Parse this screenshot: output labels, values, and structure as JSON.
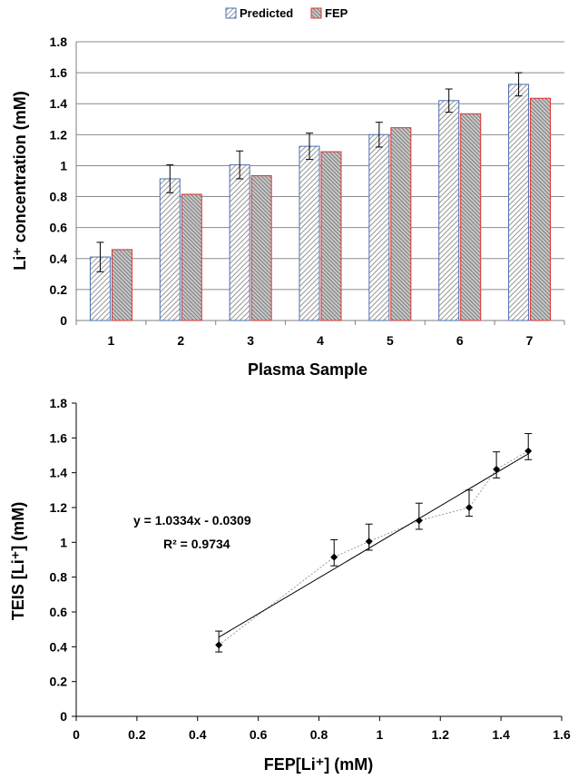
{
  "chart_data": [
    {
      "type": "bar",
      "categories": [
        "1",
        "2",
        "3",
        "4",
        "5",
        "6",
        "7"
      ],
      "series": [
        {
          "name": "Predicted",
          "values": [
            0.41,
            0.915,
            1.005,
            1.125,
            1.2,
            1.42,
            1.525
          ],
          "error": [
            0.095,
            0.09,
            0.09,
            0.085,
            0.08,
            0.075,
            0.075
          ]
        },
        {
          "name": "FEP",
          "values": [
            0.458,
            0.815,
            0.935,
            1.09,
            1.245,
            1.335,
            1.435
          ]
        }
      ],
      "xlabel": "Plasma Sample",
      "ylabel": "Li⁺ concentration (mM)",
      "ylim": [
        0,
        1.8
      ],
      "yticks": [
        "0",
        "0.2",
        "0.4",
        "0.6",
        "0.8",
        "1",
        "1.2",
        "1.4",
        "1.6",
        "1.8"
      ],
      "grid": true,
      "legend": "top-center"
    },
    {
      "type": "scatter",
      "x": [
        0.47,
        0.85,
        0.965,
        1.13,
        1.295,
        1.385,
        1.49
      ],
      "y": [
        0.41,
        0.915,
        1.005,
        1.125,
        1.2,
        1.42,
        1.525
      ],
      "error": [
        0.04,
        0.05,
        0.05,
        0.05,
        0.05,
        0.05,
        0.05
      ],
      "fit": {
        "slope": 1.0334,
        "intercept": -0.0309
      },
      "equation": "y = 1.0334x - 0.0309",
      "r2": "R² = 0.9734",
      "xlabel": "FEP[Li⁺] (mM)",
      "ylabel": "TEIS [Li⁺] (mM)",
      "xlim": [
        0,
        1.6
      ],
      "ylim": [
        0,
        1.8
      ],
      "xticks": [
        "0",
        "0.2",
        "0.4",
        "0.6",
        "0.8",
        "1",
        "1.2",
        "1.4",
        "1.6"
      ],
      "yticks": [
        "0",
        "0.2",
        "0.4",
        "0.6",
        "0.8",
        "1",
        "1.2",
        "1.4",
        "1.6",
        "1.8"
      ],
      "grid": false
    }
  ]
}
